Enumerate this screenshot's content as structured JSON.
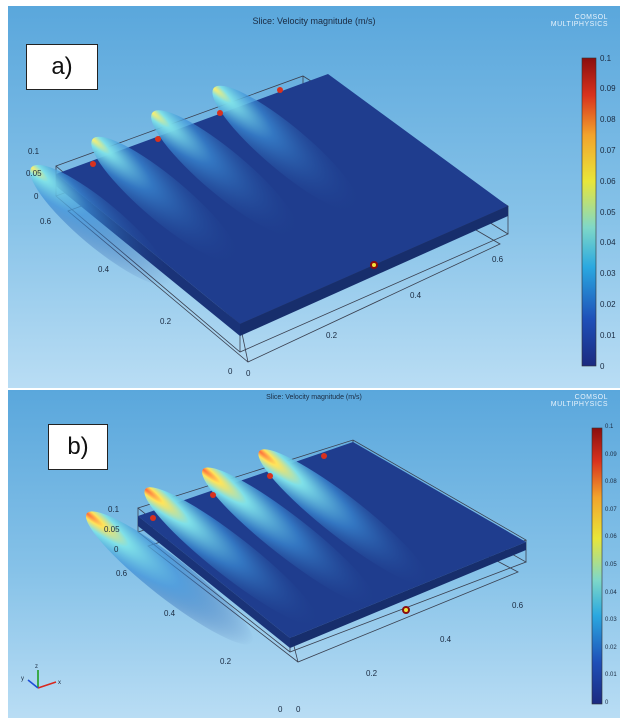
{
  "panels": [
    {
      "id": "a",
      "label": "a)",
      "title": "Slice: Velocity magnitude (m/s)",
      "logo": [
        "COMSOL",
        "MULTIPHYSICS"
      ],
      "z_ticks": [
        "0.1",
        "0.05",
        "0"
      ],
      "y_ticks": [
        "0.6",
        "0.4",
        "0.2",
        "0"
      ],
      "x_ticks": [
        "0",
        "0.2",
        "0.4",
        "0.6"
      ],
      "colorbar_ticks": [
        "0.1",
        "0.09",
        "0.08",
        "0.07",
        "0.06",
        "0.05",
        "0.04",
        "0.03",
        "0.02",
        "0.01",
        "0"
      ]
    },
    {
      "id": "b",
      "label": "b)",
      "title": "Slice: Velocity magnitude (m/s)",
      "logo": [
        "COMSOL",
        "MULTIPHYSICS"
      ],
      "z_ticks": [
        "0.1",
        "0.05",
        "0"
      ],
      "y_ticks": [
        "0.6",
        "0.4",
        "0.2",
        "0"
      ],
      "x_ticks": [
        "0",
        "0.2",
        "0.4",
        "0.6"
      ],
      "colorbar_ticks": [
        "0.1",
        "0.09",
        "0.08",
        "0.07",
        "0.06",
        "0.05",
        "0.04",
        "0.03",
        "0.02",
        "0.01",
        "0"
      ],
      "triad": {
        "x": "x",
        "y": "y",
        "z": "z"
      }
    }
  ],
  "colors": {
    "background_top": "#5aa7dc",
    "background_bottom": "#b9ddf4",
    "slice": "#1f3d8e",
    "colormap": [
      "#1b2a80",
      "#1e5fc4",
      "#2ab0e0",
      "#9be0a0",
      "#f2e33a",
      "#f08a2a",
      "#d0281e",
      "#8a0e0e"
    ]
  }
}
